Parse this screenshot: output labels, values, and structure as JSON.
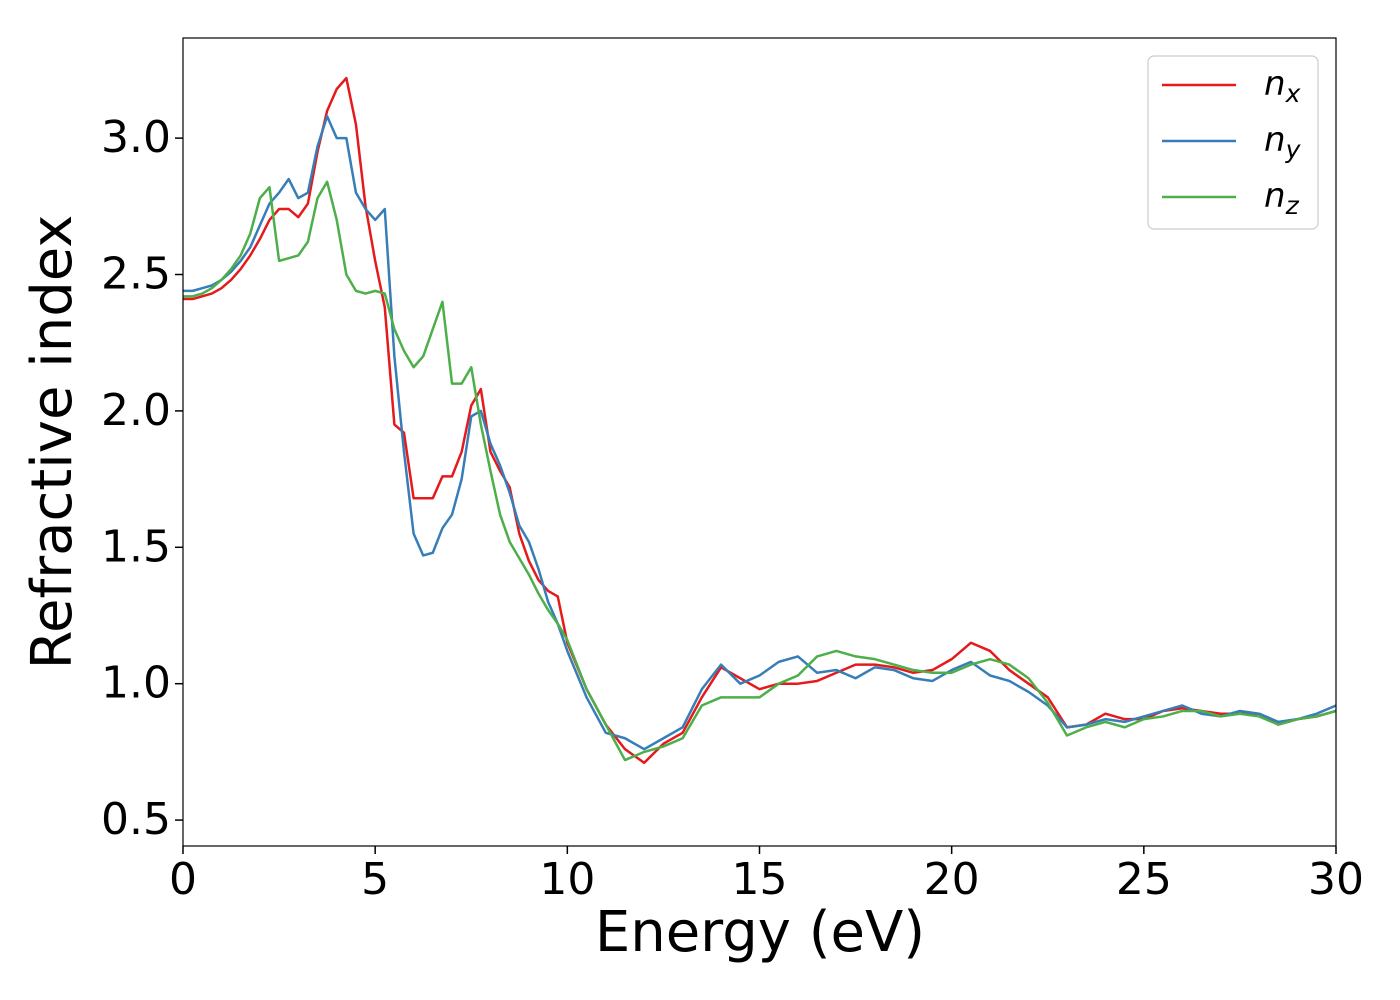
{
  "chart_data": {
    "type": "line",
    "xlabel": "Energy (eV)",
    "ylabel": "Refractive index",
    "xlim": [
      0,
      30
    ],
    "ylim": [
      0.405,
      3.367
    ],
    "xticks": [
      0,
      5,
      10,
      15,
      20,
      25,
      30
    ],
    "yticks": [
      0.5,
      {
        "value": 1,
        "label": "1.0"
      },
      1.5,
      {
        "value": 2,
        "label": "2.0"
      },
      2.5,
      {
        "value": 3,
        "label": "3.0"
      }
    ],
    "legend": "upper right",
    "grid": false,
    "x": [
      0,
      0.25,
      0.5,
      0.75,
      1,
      1.25,
      1.5,
      1.75,
      2,
      2.25,
      2.5,
      2.75,
      3,
      3.25,
      3.5,
      3.75,
      4,
      4.25,
      4.5,
      4.75,
      5,
      5.25,
      5.5,
      5.75,
      6,
      6.25,
      6.5,
      6.75,
      7,
      7.25,
      7.5,
      7.75,
      8,
      8.25,
      8.5,
      8.75,
      9,
      9.25,
      9.5,
      9.75,
      10,
      10.5,
      11,
      11.5,
      12,
      12.5,
      13,
      13.5,
      14,
      14.5,
      15,
      15.5,
      16,
      16.5,
      17,
      17.5,
      18,
      18.5,
      19,
      19.5,
      20,
      20.5,
      21,
      21.5,
      22,
      22.5,
      23,
      23.5,
      24,
      24.5,
      25,
      25.5,
      26,
      26.5,
      27,
      27.5,
      28,
      28.5,
      29,
      29.5,
      30
    ],
    "series": [
      {
        "name": "n_x",
        "color": "#e41a1c",
        "values": [
          2.41,
          2.41,
          2.42,
          2.43,
          2.45,
          2.48,
          2.52,
          2.57,
          2.63,
          2.7,
          2.74,
          2.74,
          2.71,
          2.76,
          2.95,
          3.1,
          3.18,
          3.22,
          3.05,
          2.75,
          2.55,
          2.38,
          1.95,
          1.92,
          1.68,
          1.68,
          1.68,
          1.76,
          1.76,
          1.85,
          2.02,
          2.08,
          1.85,
          1.78,
          1.72,
          1.55,
          1.45,
          1.38,
          1.34,
          1.32,
          1.15,
          0.98,
          0.85,
          0.76,
          0.71,
          0.78,
          0.82,
          0.95,
          1.06,
          1.02,
          0.98,
          1.0,
          1.0,
          1.01,
          1.04,
          1.07,
          1.07,
          1.06,
          1.04,
          1.05,
          1.09,
          1.15,
          1.12,
          1.05,
          1.0,
          0.95,
          0.84,
          0.85,
          0.89,
          0.87,
          0.87,
          0.9,
          0.91,
          0.9,
          0.89,
          0.89,
          0.89,
          0.85,
          0.87,
          0.88,
          0.9
        ]
      },
      {
        "name": "n_y",
        "color": "#377eb8",
        "values": [
          2.44,
          2.44,
          2.45,
          2.46,
          2.48,
          2.51,
          2.55,
          2.6,
          2.68,
          2.76,
          2.8,
          2.85,
          2.78,
          2.8,
          2.97,
          3.08,
          3.0,
          3.0,
          2.8,
          2.74,
          2.7,
          2.74,
          2.2,
          1.85,
          1.55,
          1.47,
          1.48,
          1.57,
          1.62,
          1.75,
          1.98,
          2.0,
          1.88,
          1.8,
          1.7,
          1.58,
          1.52,
          1.42,
          1.3,
          1.22,
          1.12,
          0.95,
          0.82,
          0.8,
          0.76,
          0.8,
          0.84,
          0.98,
          1.07,
          1.0,
          1.03,
          1.08,
          1.1,
          1.04,
          1.05,
          1.02,
          1.06,
          1.05,
          1.02,
          1.01,
          1.05,
          1.08,
          1.03,
          1.01,
          0.97,
          0.92,
          0.84,
          0.85,
          0.87,
          0.86,
          0.88,
          0.9,
          0.92,
          0.89,
          0.88,
          0.9,
          0.89,
          0.86,
          0.87,
          0.89,
          0.92
        ]
      },
      {
        "name": "n_z",
        "color": "#4daf4a",
        "values": [
          2.42,
          2.42,
          2.43,
          2.45,
          2.48,
          2.52,
          2.57,
          2.65,
          2.78,
          2.82,
          2.55,
          2.56,
          2.57,
          2.62,
          2.78,
          2.84,
          2.7,
          2.5,
          2.44,
          2.43,
          2.44,
          2.43,
          2.3,
          2.22,
          2.16,
          2.2,
          2.3,
          2.4,
          2.1,
          2.1,
          2.16,
          1.95,
          1.78,
          1.62,
          1.52,
          1.46,
          1.4,
          1.33,
          1.27,
          1.22,
          1.16,
          0.98,
          0.85,
          0.72,
          0.75,
          0.77,
          0.8,
          0.92,
          0.95,
          0.95,
          0.95,
          1.0,
          1.03,
          1.1,
          1.12,
          1.1,
          1.09,
          1.07,
          1.05,
          1.04,
          1.04,
          1.07,
          1.09,
          1.07,
          1.02,
          0.93,
          0.81,
          0.84,
          0.86,
          0.84,
          0.87,
          0.88,
          0.9,
          0.9,
          0.88,
          0.89,
          0.88,
          0.85,
          0.87,
          0.88,
          0.9
        ]
      }
    ]
  }
}
